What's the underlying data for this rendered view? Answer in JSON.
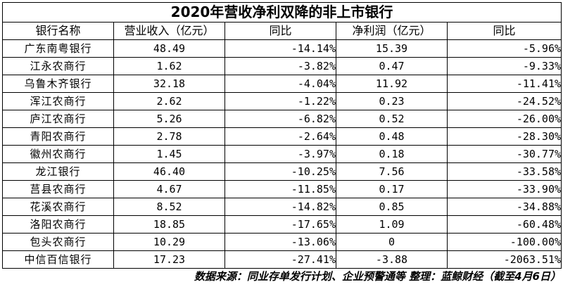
{
  "title": "2020年营收净利双降的非上市银行",
  "headers": [
    "银行名称",
    "营业收入（亿元）",
    "同比",
    "净利润（亿元）",
    "同比"
  ],
  "rows": [
    {
      "name": "广东南粤银行",
      "revenue": "48.49",
      "revenue_yoy": "-14.14%",
      "profit": "15.39",
      "profit_yoy": "-5.96%"
    },
    {
      "name": "江永农商行",
      "revenue": "1.62",
      "revenue_yoy": "-3.82%",
      "profit": "0.47",
      "profit_yoy": "-9.33%"
    },
    {
      "name": "乌鲁木齐银行",
      "revenue": "32.18",
      "revenue_yoy": "-4.04%",
      "profit": "11.92",
      "profit_yoy": "-11.41%"
    },
    {
      "name": "浑江农商行",
      "revenue": "2.62",
      "revenue_yoy": "-1.22%",
      "profit": "0.23",
      "profit_yoy": "-24.52%"
    },
    {
      "name": "庐江农商行",
      "revenue": "5.26",
      "revenue_yoy": "-6.82%",
      "profit": "0.52",
      "profit_yoy": "-26.00%"
    },
    {
      "name": "青阳农商行",
      "revenue": "2.78",
      "revenue_yoy": "-2.64%",
      "profit": "0.48",
      "profit_yoy": "-28.30%"
    },
    {
      "name": "徽州农商行",
      "revenue": "1.45",
      "revenue_yoy": "-3.97%",
      "profit": "0.18",
      "profit_yoy": "-30.77%"
    },
    {
      "name": "龙江银行",
      "revenue": "46.40",
      "revenue_yoy": "-10.25%",
      "profit": "7.56",
      "profit_yoy": "-33.58%"
    },
    {
      "name": "莒县农商行",
      "revenue": "4.67",
      "revenue_yoy": "-11.85%",
      "profit": "0.17",
      "profit_yoy": "-33.90%"
    },
    {
      "name": "花溪农商行",
      "revenue": "8.52",
      "revenue_yoy": "-14.82%",
      "profit": "0.85",
      "profit_yoy": "-34.88%"
    },
    {
      "name": "洛阳农商行",
      "revenue": "18.85",
      "revenue_yoy": "-17.65%",
      "profit": "1.09",
      "profit_yoy": "-60.48%"
    },
    {
      "name": "包头农商行",
      "revenue": "10.29",
      "revenue_yoy": "-13.06%",
      "profit": "0",
      "profit_yoy": "-100.00%"
    },
    {
      "name": "中信百信银行",
      "revenue": "17.23",
      "revenue_yoy": "-27.41%",
      "profit": "-3.88",
      "profit_yoy": "-2063.51%"
    }
  ],
  "footer": "数据来源：同业存单发行计划、企业预警通等  整理：蓝鲸财经（截至4月6日）"
}
